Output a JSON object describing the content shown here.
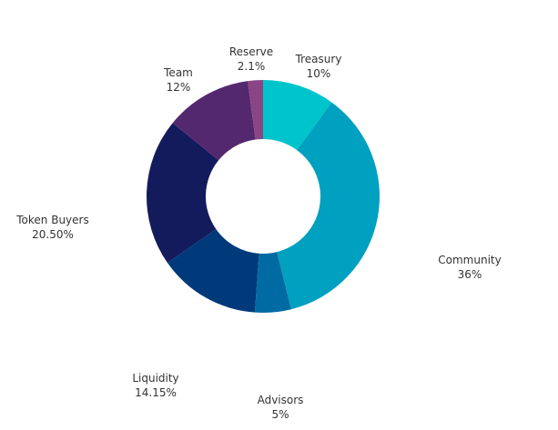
{
  "chart_data": {
    "type": "pie",
    "donut": true,
    "title": "",
    "slices": [
      {
        "label": "Treasury",
        "value": 10,
        "display": "10%",
        "color": "#00C4CC"
      },
      {
        "label": "Community",
        "value": 36,
        "display": "36%",
        "color": "#00A0C0"
      },
      {
        "label": "Advisors",
        "value": 5,
        "display": "5%",
        "color": "#006BA3"
      },
      {
        "label": "Liquidity",
        "value": 14.15,
        "display": "14.15%",
        "color": "#003A7A"
      },
      {
        "label": "Token Buyers",
        "value": 20.5,
        "display": "20.50%",
        "color": "#141B5C"
      },
      {
        "label": "Team",
        "value": 12,
        "display": "12%",
        "color": "#54286E"
      },
      {
        "label": "Reserve",
        "value": 2.1,
        "display": "2.1%",
        "color": "#8A4585"
      }
    ],
    "start_angle": "top (12 o'clock), clockwise"
  }
}
